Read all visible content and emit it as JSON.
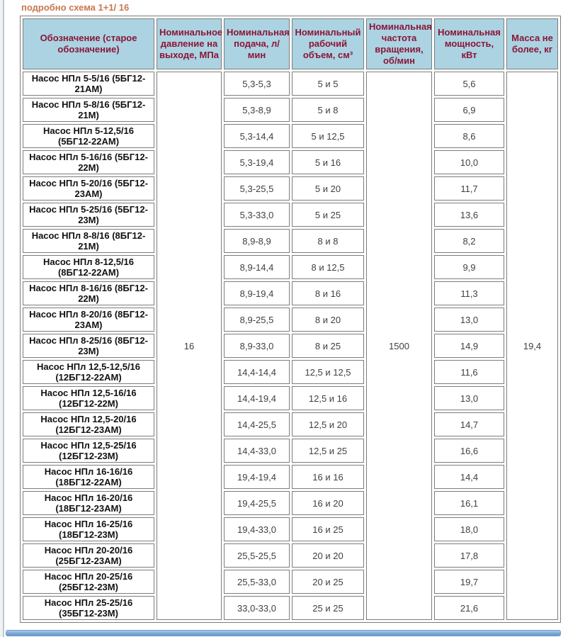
{
  "page": {
    "title_link": "подробно схема 1+1/ 16",
    "link_color": "#C87850"
  },
  "table": {
    "colors": {
      "header_bg": "#ABD3E2",
      "header_text": "#8B1538",
      "border": "#7D7D7D"
    },
    "headers": [
      "Обозначение (старое обозначение)",
      "Номинальное давление на выходе, МПа",
      "Номинальная подача, л/ мин",
      "Номинальный рабочий объем, см³",
      "Номинальная частота вращения, об/мин",
      "Номинальная мощность, кВт",
      "Масса не более, кг"
    ],
    "spanned": {
      "pressure_mpa": "16",
      "speed_rpm": "1500",
      "mass_kg": "19,4"
    },
    "rows": [
      {
        "name": "Насос НПл 5-5/16 (5БГ12-21АМ)",
        "flow": "5,3-5,3",
        "volume": "5 и 5",
        "power": "5,6"
      },
      {
        "name": "Насос НПл 5-8/16 (5БГ12-21М)",
        "flow": "5,3-8,9",
        "volume": "5 и 8",
        "power": "6,9"
      },
      {
        "name": "Насос НПл 5-12,5/16 (5БГ12-22АМ)",
        "flow": "5,3-14,4",
        "volume": "5 и 12,5",
        "power": "8,6"
      },
      {
        "name": "Насос НПл 5-16/16 (5БГ12-22М)",
        "flow": "5,3-19,4",
        "volume": "5 и 16",
        "power": "10,0"
      },
      {
        "name": "Насос НПл 5-20/16 (5БГ12-23АМ)",
        "flow": "5,3-25,5",
        "volume": "5 и 20",
        "power": "11,7"
      },
      {
        "name": "Насос НПл 5-25/16 (5БГ12-23М)",
        "flow": "5,3-33,0",
        "volume": "5 и 25",
        "power": "13,6"
      },
      {
        "name": "Насос НПл 8-8/16 (8БГ12-21М)",
        "flow": "8,9-8,9",
        "volume": "8 и 8",
        "power": "8,2"
      },
      {
        "name": "Насос НПл 8-12,5/16 (8БГ12-22АМ)",
        "flow": "8,9-14,4",
        "volume": "8 и 12,5",
        "power": "9,9"
      },
      {
        "name": "Насос НПл 8-16/16 (8БГ12-22М)",
        "flow": "8,9-19,4",
        "volume": "8 и 16",
        "power": "11,3"
      },
      {
        "name": "Насос НПл 8-20/16 (8БГ12-23АМ)",
        "flow": "8,9-25,5",
        "volume": "8 и 20",
        "power": "13,0"
      },
      {
        "name": "Насос НПл 8-25/16 (8БГ12-23М)",
        "flow": "8,9-33,0",
        "volume": "8 и 25",
        "power": "14,9"
      },
      {
        "name": "Насос НПл 12,5-12,5/16 (12БГ12-22АМ)",
        "flow": "14,4-14,4",
        "volume": "12,5 и 12,5",
        "power": "11,6"
      },
      {
        "name": "Насос НПл 12,5-16/16 (12БГ12-22М)",
        "flow": "14,4-19,4",
        "volume": "12,5 и 16",
        "power": "13,0"
      },
      {
        "name": "Насос НПл 12,5-20/16 (12БГ12-23АМ)",
        "flow": "14,4-25,5",
        "volume": "12,5 и 20",
        "power": "14,7"
      },
      {
        "name": "Насос НПл 12,5-25/16 (12БГ12-23М)",
        "flow": "14,4-33,0",
        "volume": "12,5 и 25",
        "power": "16,6"
      },
      {
        "name": "Насос НПл 16-16/16 (18БГ12-22АМ)",
        "flow": "19,4-19,4",
        "volume": "16 и 16",
        "power": "14,4"
      },
      {
        "name": "Насос НПл 16-20/16 (18БГ12-23АМ)",
        "flow": "19,4-25,5",
        "volume": "16 и 20",
        "power": "16,1"
      },
      {
        "name": "Насос НПл 16-25/16 (18БГ12-23М)",
        "flow": "19,4-33,0",
        "volume": "16 и 25",
        "power": "18,0"
      },
      {
        "name": "Насос НПл 20-20/16 (25БГ12-23АМ)",
        "flow": "25,5-25,5",
        "volume": "20 и 20",
        "power": "17,8"
      },
      {
        "name": "Насос НПл 20-25/16 (25БГ12-23М)",
        "flow": "25,5-33,0",
        "volume": "20 и 25",
        "power": "19,7"
      },
      {
        "name": "Насос НПл 25-25/16 (35БГ12-23М)",
        "flow": "33,0-33,0",
        "volume": "25 и 25",
        "power": "21,6"
      }
    ]
  }
}
